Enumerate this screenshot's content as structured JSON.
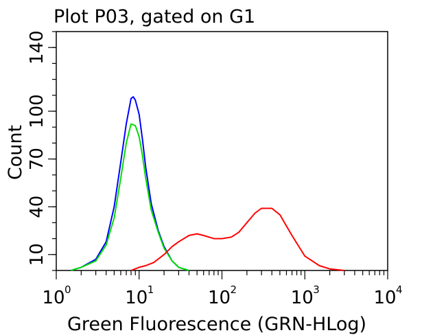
{
  "chart_data": {
    "type": "line",
    "title": "Plot P03, gated on G1",
    "xlabel": "Green Fluorescence (GRN-HLog)",
    "ylabel": "Count",
    "x_scale": "log",
    "xlim": [
      1,
      10000
    ],
    "ylim": [
      0,
      150
    ],
    "x_ticks": [
      {
        "value": 1,
        "base": "10",
        "exp": "0"
      },
      {
        "value": 10,
        "base": "10",
        "exp": "1"
      },
      {
        "value": 100,
        "base": "10",
        "exp": "2"
      },
      {
        "value": 1000,
        "base": "10",
        "exp": "3"
      },
      {
        "value": 10000,
        "base": "10",
        "exp": "4"
      }
    ],
    "y_ticks": [
      {
        "value": 10,
        "label": "10"
      },
      {
        "value": 40,
        "label": "40"
      },
      {
        "value": 70,
        "label": "70"
      },
      {
        "value": 100,
        "label": "100"
      },
      {
        "value": 140,
        "label": "140"
      }
    ],
    "grid": false,
    "series": [
      {
        "color": "#0000ff",
        "x": [
          1.5,
          2,
          3,
          4,
          5,
          6,
          7,
          8,
          8.5,
          9,
          10,
          11,
          12,
          14,
          17,
          20,
          25,
          30,
          40
        ],
        "y": [
          0,
          2,
          7,
          18,
          40,
          68,
          92,
          108,
          109,
          107,
          98,
          82,
          65,
          42,
          25,
          15,
          6,
          2,
          0
        ]
      },
      {
        "color": "#00dd00",
        "x": [
          1.5,
          2,
          3,
          4,
          5,
          6,
          7,
          8,
          9,
          10,
          11,
          12,
          14,
          17,
          20,
          25,
          30,
          40
        ],
        "y": [
          0,
          2,
          6,
          16,
          33,
          58,
          80,
          92,
          91,
          84,
          72,
          58,
          38,
          24,
          14,
          6,
          2,
          0
        ]
      },
      {
        "color": "#ff0000",
        "x": [
          8,
          10,
          12,
          15,
          20,
          25,
          30,
          40,
          50,
          60,
          80,
          100,
          130,
          160,
          200,
          250,
          300,
          400,
          500,
          700,
          1000,
          1500,
          2000,
          3000
        ],
        "y": [
          0,
          2,
          3,
          5,
          10,
          15,
          18,
          22,
          23,
          22,
          20,
          20,
          21,
          24,
          30,
          36,
          39,
          39,
          35,
          22,
          9,
          3,
          1,
          0
        ]
      }
    ]
  }
}
